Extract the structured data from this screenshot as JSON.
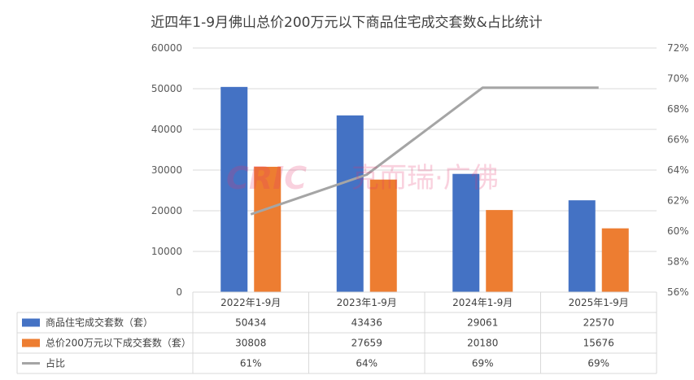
{
  "chart_data": {
    "type": "bar",
    "title": "近四年1-9月佛山总价200万元以下商品住宅成交套数&占比统计",
    "categories": [
      "2022年1-9月",
      "2023年1-9月",
      "2024年1-9月",
      "2025年1-9月"
    ],
    "y_left": {
      "min": 0,
      "max": 60000,
      "ticks": [
        "0",
        "10000",
        "20000",
        "30000",
        "40000",
        "50000",
        "60000"
      ]
    },
    "y_right": {
      "min": 56,
      "max": 72,
      "ticks": [
        "56%",
        "58%",
        "60%",
        "62%",
        "64%",
        "66%",
        "68%",
        "70%",
        "72%"
      ]
    },
    "series": [
      {
        "name": "商品住宅成交套数（套）",
        "type": "bar",
        "axis": "left",
        "color": "#4472c4",
        "values": [
          50434,
          43436,
          29061,
          22570
        ],
        "labels": [
          "50434",
          "43436",
          "29061",
          "22570"
        ]
      },
      {
        "name": "总价200万元以下成交套数（套）",
        "type": "bar",
        "axis": "left",
        "color": "#ed7d31",
        "values": [
          30808,
          27659,
          20180,
          15676
        ],
        "labels": [
          "30808",
          "27659",
          "20180",
          "15676"
        ]
      },
      {
        "name": "占比",
        "type": "line",
        "axis": "right",
        "color": "#a5a5a5",
        "values": [
          61.1,
          63.7,
          69.4,
          69.4
        ],
        "labels": [
          "61%",
          "64%",
          "69%",
          "69%"
        ]
      }
    ],
    "grid": true,
    "legend": "data-table"
  },
  "watermark": {
    "logo_text": "CRIC",
    "brand_text": "克而瑞·广佛"
  }
}
